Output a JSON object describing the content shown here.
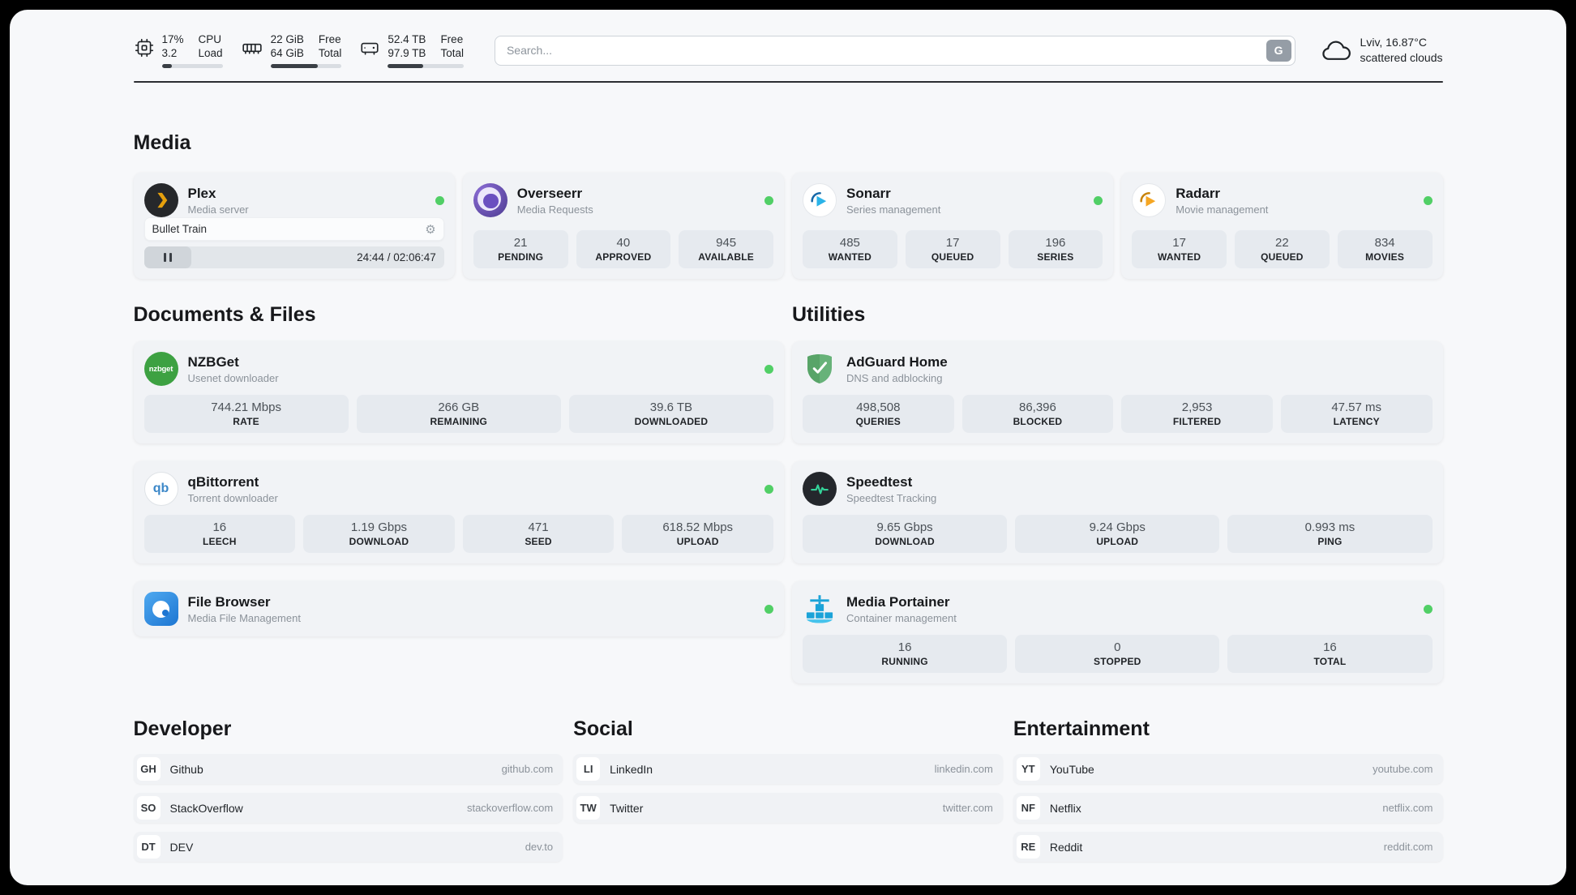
{
  "colors": {
    "status_online": "#51cf66",
    "divider": "#2b2d31",
    "plex_gold": "#e5a00d"
  },
  "icons": {
    "gear": "⚙"
  },
  "topbar": {
    "cpu": {
      "line1": "17%",
      "line2": "3.2",
      "label1": "CPU",
      "label2": "Load",
      "percent": 17
    },
    "ram": {
      "line1": "22 GiB",
      "line2": "64 GiB",
      "label1": "Free",
      "label2": "Total",
      "percent": 66
    },
    "disk": {
      "line1": "52.4 TB",
      "line2": "97.9 TB",
      "label1": "Free",
      "label2": "Total",
      "percent": 47
    },
    "search": {
      "placeholder": "Search...",
      "engine_button": "G"
    },
    "weather": {
      "location": "Lviv, 16.87°C",
      "condition": "scattered clouds"
    }
  },
  "media": {
    "title": "Media",
    "plex": {
      "name": "Plex",
      "subtitle": "Media server",
      "now_playing": "Bullet Train",
      "time": "24:44 / 02:06:47"
    },
    "overseerr": {
      "name": "Overseerr",
      "subtitle": "Media Requests",
      "stats": [
        {
          "value": "21",
          "label": "PENDING"
        },
        {
          "value": "40",
          "label": "APPROVED"
        },
        {
          "value": "945",
          "label": "AVAILABLE"
        }
      ]
    },
    "sonarr": {
      "name": "Sonarr",
      "subtitle": "Series management",
      "stats": [
        {
          "value": "485",
          "label": "WANTED"
        },
        {
          "value": "17",
          "label": "QUEUED"
        },
        {
          "value": "196",
          "label": "SERIES"
        }
      ]
    },
    "radarr": {
      "name": "Radarr",
      "subtitle": "Movie management",
      "stats": [
        {
          "value": "17",
          "label": "WANTED"
        },
        {
          "value": "22",
          "label": "QUEUED"
        },
        {
          "value": "834",
          "label": "MOVIES"
        }
      ]
    }
  },
  "documents": {
    "title": "Documents & Files",
    "nzbget": {
      "name": "NZBGet",
      "subtitle": "Usenet downloader",
      "icon_text": "nzbget",
      "stats": [
        {
          "value": "744.21 Mbps",
          "label": "RATE"
        },
        {
          "value": "266 GB",
          "label": "REMAINING"
        },
        {
          "value": "39.6 TB",
          "label": "DOWNLOADED"
        }
      ]
    },
    "qbittorrent": {
      "name": "qBittorrent",
      "subtitle": "Torrent downloader",
      "icon_text": "qb",
      "stats": [
        {
          "value": "16",
          "label": "LEECH"
        },
        {
          "value": "1.19 Gbps",
          "label": "DOWNLOAD"
        },
        {
          "value": "471",
          "label": "SEED"
        },
        {
          "value": "618.52 Mbps",
          "label": "UPLOAD"
        }
      ]
    },
    "filebrowser": {
      "name": "File Browser",
      "subtitle": "Media File Management"
    }
  },
  "utilities": {
    "title": "Utilities",
    "adguard": {
      "name": "AdGuard Home",
      "subtitle": "DNS and adblocking",
      "stats": [
        {
          "value": "498,508",
          "label": "QUERIES"
        },
        {
          "value": "86,396",
          "label": "BLOCKED"
        },
        {
          "value": "2,953",
          "label": "FILTERED"
        },
        {
          "value": "47.57 ms",
          "label": "LATENCY"
        }
      ]
    },
    "speedtest": {
      "name": "Speedtest",
      "subtitle": "Speedtest Tracking",
      "stats": [
        {
          "value": "9.65 Gbps",
          "label": "DOWNLOAD"
        },
        {
          "value": "9.24 Gbps",
          "label": "UPLOAD"
        },
        {
          "value": "0.993 ms",
          "label": "PING"
        }
      ]
    },
    "portainer": {
      "name": "Media Portainer",
      "subtitle": "Container management",
      "stats": [
        {
          "value": "16",
          "label": "RUNNING"
        },
        {
          "value": "0",
          "label": "STOPPED"
        },
        {
          "value": "16",
          "label": "TOTAL"
        }
      ]
    }
  },
  "bookmarks": {
    "developer": {
      "title": "Developer",
      "links": [
        {
          "abbr": "GH",
          "name": "Github",
          "url": "github.com"
        },
        {
          "abbr": "SO",
          "name": "StackOverflow",
          "url": "stackoverflow.com"
        },
        {
          "abbr": "DT",
          "name": "DEV",
          "url": "dev.to"
        }
      ]
    },
    "social": {
      "title": "Social",
      "links": [
        {
          "abbr": "LI",
          "name": "LinkedIn",
          "url": "linkedin.com"
        },
        {
          "abbr": "TW",
          "name": "Twitter",
          "url": "twitter.com"
        }
      ]
    },
    "entertainment": {
      "title": "Entertainment",
      "links": [
        {
          "abbr": "YT",
          "name": "YouTube",
          "url": "youtube.com"
        },
        {
          "abbr": "NF",
          "name": "Netflix",
          "url": "netflix.com"
        },
        {
          "abbr": "RE",
          "name": "Reddit",
          "url": "reddit.com"
        }
      ]
    }
  }
}
